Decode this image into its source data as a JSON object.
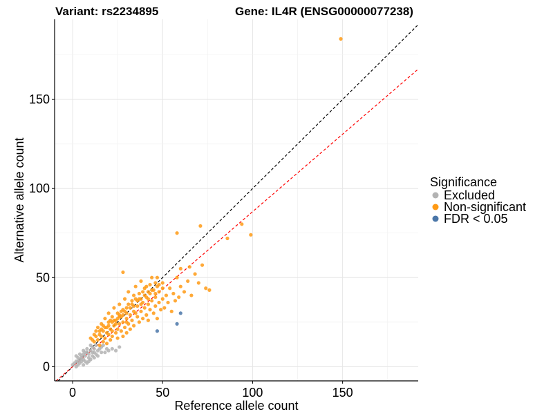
{
  "chart_data": {
    "type": "scatter",
    "title_left": "Variant: rs2234895",
    "title_right": "Gene: IL4R (ENSG00000077238)",
    "xlabel": "Reference allele count",
    "ylabel": "Alternative allele count",
    "xlim": [
      -10,
      192
    ],
    "ylim": [
      -8,
      195
    ],
    "xticks": [
      0,
      50,
      100,
      150
    ],
    "yticks": [
      0,
      50,
      100,
      150
    ],
    "grid": true,
    "reference_lines": [
      {
        "name": "identity",
        "slope": 1.0,
        "intercept": 0,
        "color": "#000000",
        "dash": "dashed"
      },
      {
        "name": "fitted",
        "slope": 0.87,
        "intercept": 0,
        "color": "#ff0000",
        "dash": "dashed"
      }
    ],
    "legend": {
      "title": "Significance",
      "position": "right",
      "entries": [
        {
          "label": "Excluded",
          "color": "#b3b3b3"
        },
        {
          "label": "Non-significant",
          "color": "#ff9a14"
        },
        {
          "label": "FDR < 0.05",
          "color": "#4a76a8"
        }
      ]
    },
    "series": [
      {
        "name": "Excluded",
        "color": "#b3b3b3",
        "points": [
          [
            0,
            1
          ],
          [
            1,
            2
          ],
          [
            2,
            0
          ],
          [
            2,
            3
          ],
          [
            3,
            1
          ],
          [
            3,
            5
          ],
          [
            4,
            2
          ],
          [
            4,
            7
          ],
          [
            5,
            3
          ],
          [
            5,
            6
          ],
          [
            6,
            1
          ],
          [
            6,
            4
          ],
          [
            6,
            9
          ],
          [
            7,
            3
          ],
          [
            7,
            6
          ],
          [
            8,
            2
          ],
          [
            8,
            8
          ],
          [
            8,
            10
          ],
          [
            9,
            5
          ],
          [
            9,
            7
          ],
          [
            10,
            4
          ],
          [
            10,
            9
          ],
          [
            10,
            12
          ],
          [
            11,
            6
          ],
          [
            11,
            11
          ],
          [
            12,
            8
          ],
          [
            12,
            10
          ],
          [
            13,
            7
          ],
          [
            13,
            12
          ],
          [
            14,
            9
          ],
          [
            15,
            10
          ],
          [
            16,
            11
          ],
          [
            17,
            12
          ],
          [
            18,
            8
          ],
          [
            19,
            10
          ],
          [
            20,
            9
          ],
          [
            22,
            10
          ],
          [
            24,
            9
          ],
          [
            26,
            11
          ],
          [
            3,
            3
          ],
          [
            5,
            5
          ],
          [
            7,
            8
          ],
          [
            9,
            3
          ],
          [
            11,
            8
          ],
          [
            12,
            5
          ],
          [
            14,
            6
          ],
          [
            16,
            8
          ],
          [
            2,
            6
          ],
          [
            4,
            4
          ],
          [
            6,
            7
          ]
        ]
      },
      {
        "name": "Non-significant",
        "color": "#ff9a14",
        "points": [
          [
            10,
            16
          ],
          [
            12,
            18
          ],
          [
            12,
            14
          ],
          [
            13,
            20
          ],
          [
            14,
            15
          ],
          [
            14,
            22
          ],
          [
            15,
            18
          ],
          [
            15,
            12
          ],
          [
            16,
            24
          ],
          [
            16,
            17
          ],
          [
            17,
            14
          ],
          [
            17,
            20
          ],
          [
            18,
            27
          ],
          [
            18,
            16
          ],
          [
            19,
            22
          ],
          [
            19,
            13
          ],
          [
            20,
            18
          ],
          [
            20,
            25
          ],
          [
            20,
            30
          ],
          [
            21,
            15
          ],
          [
            21,
            21
          ],
          [
            22,
            28
          ],
          [
            22,
            17
          ],
          [
            23,
            23
          ],
          [
            23,
            33
          ],
          [
            24,
            19
          ],
          [
            24,
            26
          ],
          [
            25,
            21
          ],
          [
            25,
            30
          ],
          [
            25,
            16
          ],
          [
            26,
            24
          ],
          [
            26,
            35
          ],
          [
            27,
            20
          ],
          [
            27,
            28
          ],
          [
            28,
            17
          ],
          [
            28,
            32
          ],
          [
            28,
            25
          ],
          [
            29,
            22
          ],
          [
            29,
            38
          ],
          [
            30,
            27
          ],
          [
            30,
            19
          ],
          [
            30,
            33
          ],
          [
            31,
            24
          ],
          [
            31,
            42
          ],
          [
            32,
            29
          ],
          [
            32,
            21
          ],
          [
            33,
            35
          ],
          [
            33,
            26
          ],
          [
            34,
            23
          ],
          [
            34,
            40
          ],
          [
            35,
            30
          ],
          [
            35,
            45
          ],
          [
            36,
            28
          ],
          [
            36,
            34
          ],
          [
            37,
            25
          ],
          [
            37,
            38
          ],
          [
            38,
            31
          ],
          [
            38,
            48
          ],
          [
            39,
            27
          ],
          [
            39,
            36
          ],
          [
            40,
            33
          ],
          [
            40,
            44
          ],
          [
            41,
            29
          ],
          [
            41,
            39
          ],
          [
            42,
            35
          ],
          [
            42,
            26
          ],
          [
            43,
            41
          ],
          [
            43,
            32
          ],
          [
            44,
            37
          ],
          [
            44,
            50
          ],
          [
            45,
            30
          ],
          [
            45,
            43
          ],
          [
            46,
            34
          ],
          [
            46,
            39
          ],
          [
            47,
            27
          ],
          [
            47,
            45
          ],
          [
            48,
            36
          ],
          [
            48,
            42
          ],
          [
            49,
            32
          ],
          [
            50,
            38
          ],
          [
            50,
            47
          ],
          [
            51,
            33
          ],
          [
            52,
            40
          ],
          [
            53,
            36
          ],
          [
            54,
            44
          ],
          [
            55,
            31
          ],
          [
            56,
            41
          ],
          [
            57,
            37
          ],
          [
            58,
            50
          ],
          [
            59,
            39
          ],
          [
            60,
            45
          ],
          [
            62,
            42
          ],
          [
            64,
            48
          ],
          [
            66,
            40
          ],
          [
            68,
            52
          ],
          [
            70,
            47
          ],
          [
            72,
            57
          ],
          [
            74,
            44
          ],
          [
            76,
            43
          ],
          [
            65,
            56
          ],
          [
            60,
            55
          ],
          [
            28,
            53
          ],
          [
            58,
            75
          ],
          [
            71,
            79
          ],
          [
            86,
            72
          ],
          [
            94,
            80
          ],
          [
            99,
            74
          ],
          [
            149,
            184
          ],
          [
            18,
            22
          ],
          [
            22,
            20
          ],
          [
            24,
            24
          ],
          [
            26,
            28
          ],
          [
            28,
            29
          ],
          [
            30,
            25
          ],
          [
            32,
            33
          ],
          [
            34,
            31
          ],
          [
            36,
            37
          ],
          [
            38,
            35
          ],
          [
            40,
            40
          ],
          [
            42,
            38
          ],
          [
            44,
            43
          ],
          [
            46,
            41
          ],
          [
            48,
            46
          ],
          [
            50,
            44
          ],
          [
            20,
            23
          ],
          [
            23,
            26
          ],
          [
            27,
            31
          ],
          [
            31,
            35
          ],
          [
            35,
            38
          ],
          [
            39,
            42
          ],
          [
            43,
            46
          ],
          [
            47,
            50
          ],
          [
            15,
            20
          ],
          [
            17,
            23
          ],
          [
            19,
            19
          ],
          [
            21,
            26
          ],
          [
            25,
            27
          ],
          [
            29,
            31
          ],
          [
            33,
            37
          ],
          [
            37,
            41
          ],
          [
            41,
            45
          ],
          [
            13,
            17
          ],
          [
            16,
            21
          ],
          [
            22,
            25
          ],
          [
            26,
            29
          ],
          [
            30,
            30
          ],
          [
            34,
            34
          ],
          [
            38,
            38
          ],
          [
            42,
            42
          ],
          [
            46,
            47
          ],
          [
            11,
            15
          ]
        ]
      },
      {
        "name": "FDR < 0.05",
        "color": "#4a76a8",
        "points": [
          [
            47,
            20
          ],
          [
            58,
            24
          ],
          [
            60,
            30
          ]
        ]
      }
    ]
  }
}
